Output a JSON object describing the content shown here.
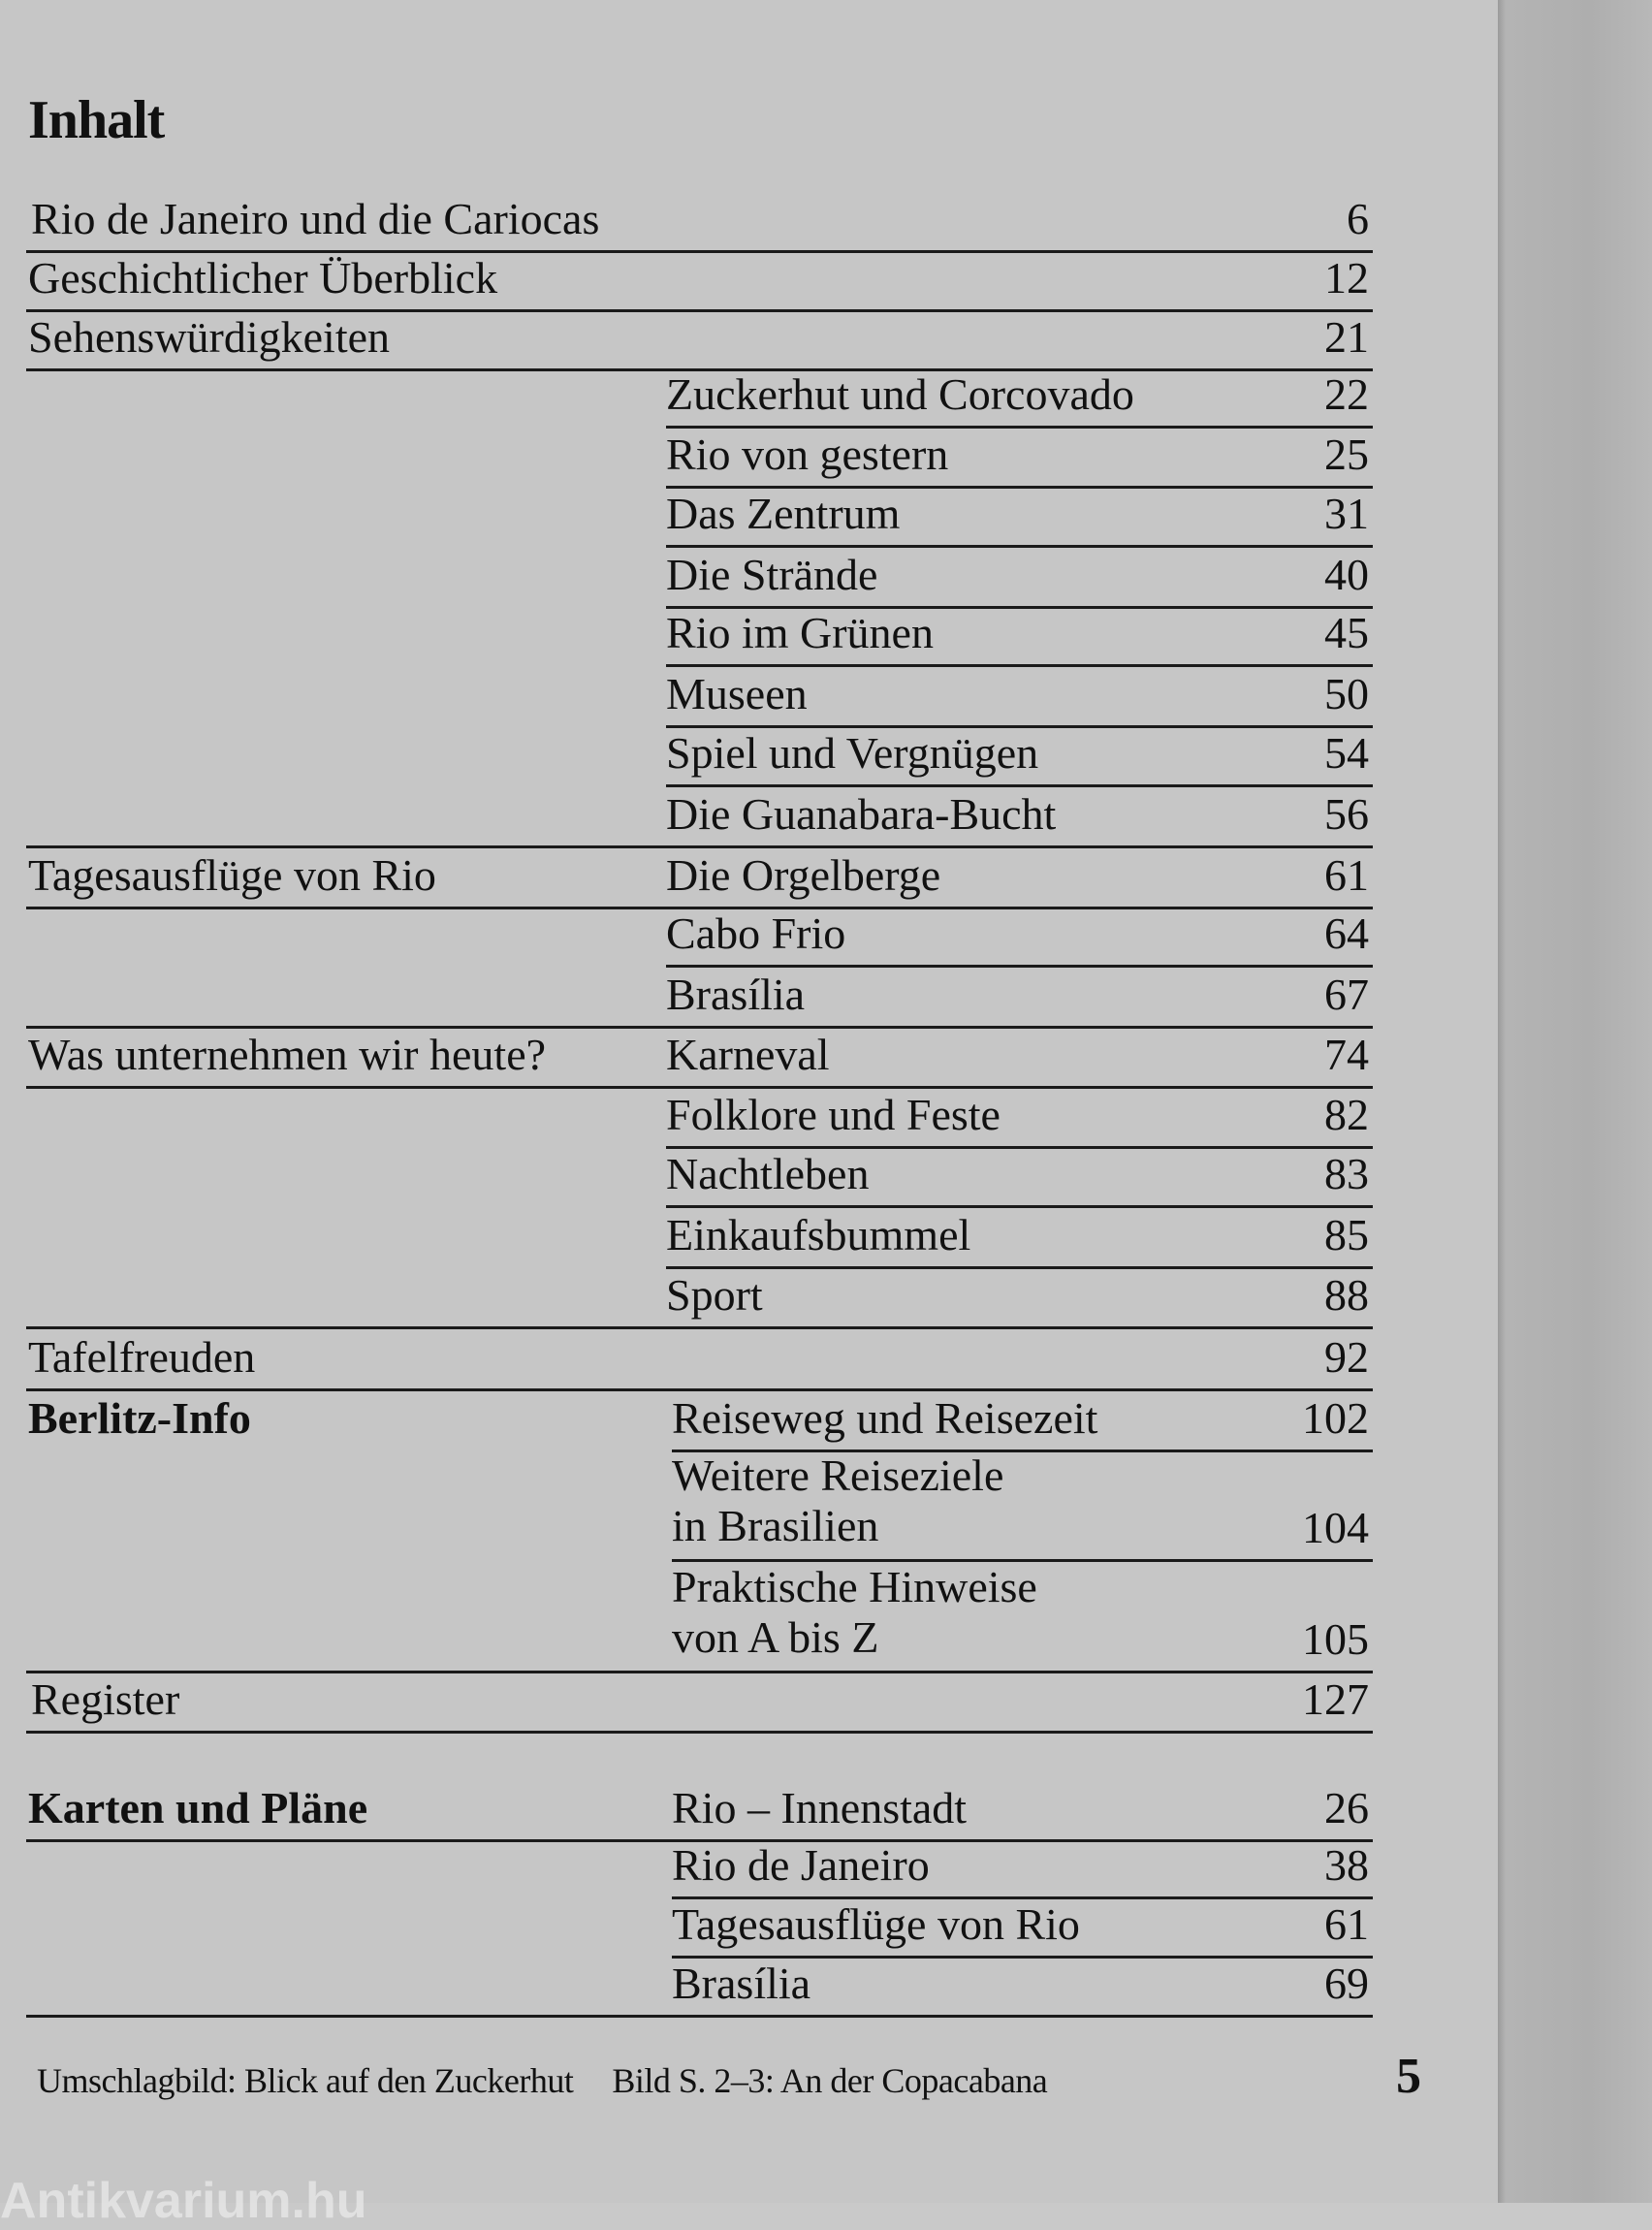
{
  "title": "Inhalt",
  "rows": [
    {
      "left": "Rio de Janeiro und die Cariocas",
      "right": "",
      "page": "6"
    },
    {
      "left": "Geschichtlicher Überblick",
      "right": "",
      "page": "12"
    },
    {
      "left": "Sehenswürdigkeiten",
      "right": "",
      "page": "21"
    },
    {
      "left": "",
      "right": "Zuckerhut und Corcovado",
      "page": "22"
    },
    {
      "left": "",
      "right": "Rio von gestern",
      "page": "25"
    },
    {
      "left": "",
      "right": "Das Zentrum",
      "page": "31"
    },
    {
      "left": "",
      "right": "Die Strände",
      "page": "40"
    },
    {
      "left": "",
      "right": "Rio im Grünen",
      "page": "45"
    },
    {
      "left": "",
      "right": "Museen",
      "page": "50"
    },
    {
      "left": "",
      "right": "Spiel und Vergnügen",
      "page": "54"
    },
    {
      "left": "",
      "right": "Die Guanabara-Bucht",
      "page": "56"
    },
    {
      "left": "Tagesausflüge von Rio",
      "right": "Die Orgelberge",
      "page": "61"
    },
    {
      "left": "",
      "right": "Cabo Frio",
      "page": "64"
    },
    {
      "left": "",
      "right": "Brasília",
      "page": "67"
    },
    {
      "left": "Was unternehmen wir heute?",
      "right": "Karneval",
      "page": "74"
    },
    {
      "left": "",
      "right": "Folklore und Feste",
      "page": "82"
    },
    {
      "left": "",
      "right": "Nachtleben",
      "page": "83"
    },
    {
      "left": "",
      "right": "Einkaufsbummel",
      "page": "85"
    },
    {
      "left": "",
      "right": "Sport",
      "page": "88"
    },
    {
      "left": "Tafelfreuden",
      "right": "",
      "page": "92"
    },
    {
      "left": "Berlitz-Info",
      "right": "Reiseweg und Reisezeit",
      "page": "102"
    },
    {
      "left": "",
      "right": "Weitere Reiseziele\nin Brasilien",
      "page": "104"
    },
    {
      "left": "",
      "right": "Praktische Hinweise\nvon A bis Z",
      "page": "105"
    },
    {
      "left": "Register",
      "right": "",
      "page": "127"
    },
    {
      "left": "Karten und Pläne",
      "right": "Rio – Innenstadt",
      "page": "26"
    },
    {
      "left": "",
      "right": "Rio de Janeiro",
      "page": "38"
    },
    {
      "left": "",
      "right": "Tagesausflüge von Rio",
      "page": "61"
    },
    {
      "left": "",
      "right": "Brasília",
      "page": "69"
    }
  ],
  "footer": {
    "cover_caption": "Umschlagbild: Blick auf den Zuckerhut",
    "image_caption": "Bild S. 2–3: An der Copacabana",
    "page_number": "5"
  },
  "watermark": "Antikvarium.hu"
}
